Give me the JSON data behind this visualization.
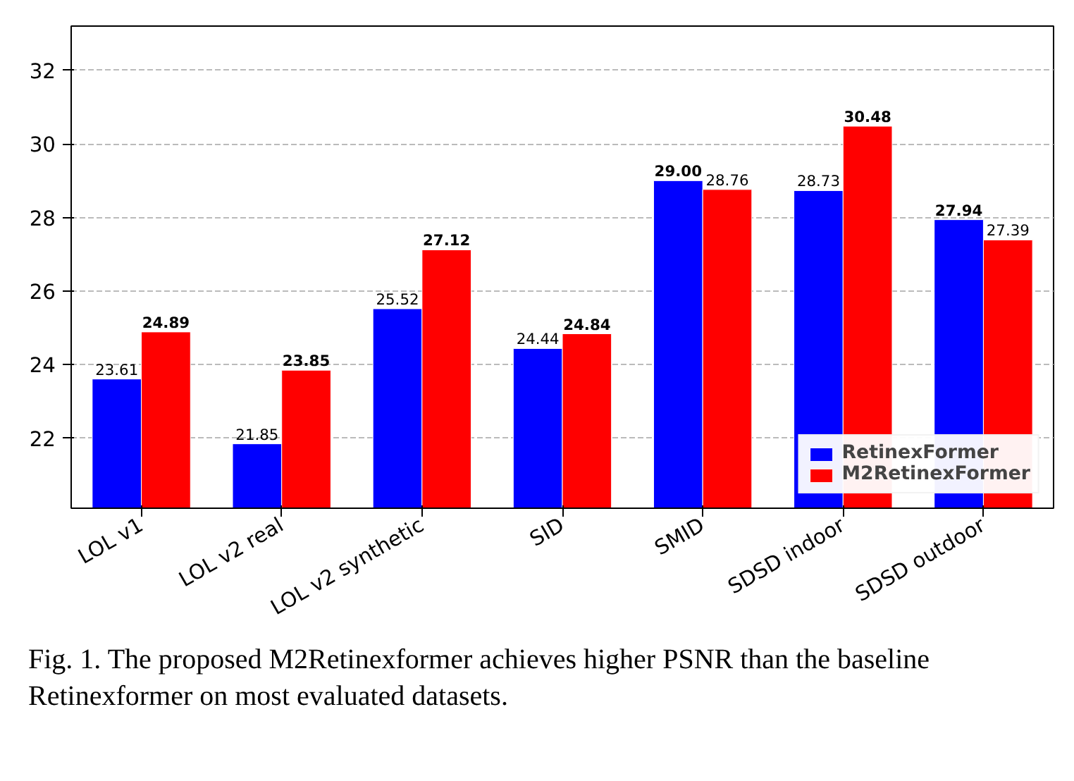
{
  "chart_data": {
    "type": "bar",
    "categories": [
      "LOL v1",
      "LOL v2 real",
      "LOL v2 synthetic",
      "SID",
      "SMID",
      "SDSD indoor",
      "SDSD outdoor"
    ],
    "series": [
      {
        "name": "RetinexFormer",
        "color": "#0000ff",
        "values": [
          23.61,
          21.85,
          25.52,
          24.44,
          29.0,
          28.73,
          27.94
        ],
        "value_labels": [
          "23.61",
          "21.85",
          "25.52",
          "24.44",
          "29.00",
          "28.73",
          "27.94"
        ]
      },
      {
        "name": "M2RetinexFormer",
        "color": "#ff0000",
        "values": [
          24.89,
          23.85,
          27.12,
          24.84,
          28.76,
          30.48,
          27.39
        ],
        "value_labels": [
          "24.89",
          "23.85",
          "27.12",
          "24.84",
          "28.76",
          "30.48",
          "27.39"
        ]
      }
    ],
    "ylim": [
      20.1,
      33.2
    ],
    "yticks": [
      22,
      24,
      26,
      28,
      30,
      32
    ],
    "grid": "y",
    "legend": "bottom right",
    "annotations": [
      "Fig. 1. The proposed M2Retinexformer achieves higher PSNR than the baseline Retinexformer on most evaluated datasets."
    ]
  }
}
